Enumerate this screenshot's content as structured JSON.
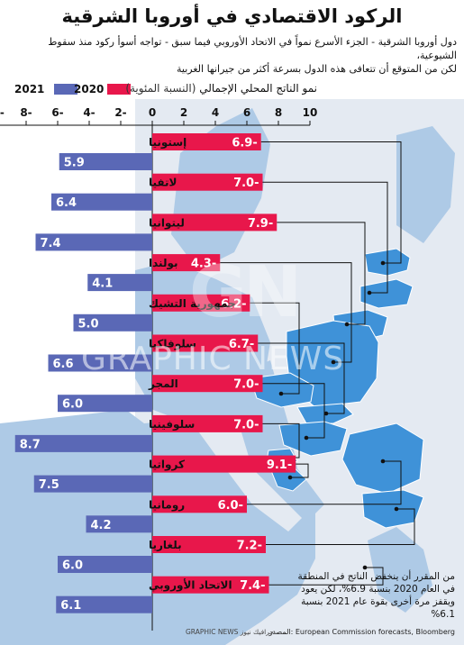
{
  "title": "الركود الاقتصادي في أوروبا الشرقية",
  "subtitle": {
    "line1": "دول أوروبا الشرقية - الجزء الأسرع نمواً في الاتحاد الأوروبي فيما سبق - تواجه أسوأ ركود منذ سقوط الشيوعية،",
    "line2": "لكن من المتوقع أن تتعافى هذه الدول بسرعة أكثر من جيرانها الغربية"
  },
  "legend": {
    "y2021": "2021",
    "y2020": "2020",
    "measure": "نمو الناتج المحلي الإجمالي",
    "unit": "(النسبة المئوية)",
    "color_2021": "#5a68b6",
    "color_2020": "#e8174b"
  },
  "axis_ticks": [
    "10",
    "8",
    "6",
    "4",
    "2",
    "0",
    "2-",
    "4-",
    "6-",
    "8-",
    "10-"
  ],
  "chart_data": {
    "type": "bar",
    "orientation": "diverging-horizontal",
    "categories": [
      "إستونيا",
      "لاتفيا",
      "ليتوانيا",
      "بولندا",
      "جمهورية التشيك",
      "سلوفاكيا",
      "المجر",
      "سلوفينيا",
      "كرواتيا",
      "رومانيا",
      "بلغاريا",
      "الاتحاد الأوروبي"
    ],
    "series": [
      {
        "name": "2020",
        "color": "#e8174b",
        "direction": "right",
        "values": [
          -6.9,
          -7.0,
          -7.9,
          -4.3,
          -6.2,
          -6.7,
          -7.0,
          -7.0,
          -9.1,
          -6.0,
          -7.2,
          -7.4
        ],
        "labels": [
          "6.9-",
          "7.0-",
          "7.9-",
          "4.3-",
          "6.2-",
          "6.7-",
          "7.0-",
          "7.0-",
          "9.1-",
          "6.0-",
          "7.2-",
          "7.4-"
        ]
      },
      {
        "name": "2021",
        "color": "#5a68b6",
        "direction": "left",
        "values": [
          5.9,
          6.4,
          7.4,
          4.1,
          5.0,
          6.6,
          6.0,
          8.7,
          7.5,
          4.2,
          6.0,
          6.1
        ],
        "labels": [
          "5.9",
          "6.4",
          "7.4",
          "4.1",
          "5.0",
          "6.6",
          "6.0",
          "8.7",
          "7.5",
          "4.2",
          "6.0",
          "6.1"
        ]
      }
    ],
    "xlim": [
      -10,
      10
    ],
    "grid": false,
    "legend_position": "top"
  },
  "map": {
    "land": "#e4eaf2",
    "eu": "#aecae6",
    "highlight": "#3f92d8",
    "sea": "#ffffff"
  },
  "note": {
    "line1": "من المقرر أن ينخفض الناتج في المنطقة",
    "line2": "في العام 2020 بنسبة 6.9%، لكن يعود",
    "line3": "ويقفز مرة أخرى بقوة عام 2021 بنسبة 6.1%"
  },
  "source": "المصدر: European Commission forecasts, Bloomberg",
  "credit": "GRAPHIC NEWS جرافيك نيوز",
  "watermark": {
    "logo": "GN",
    "text": "GRAPHIC NEWS"
  }
}
